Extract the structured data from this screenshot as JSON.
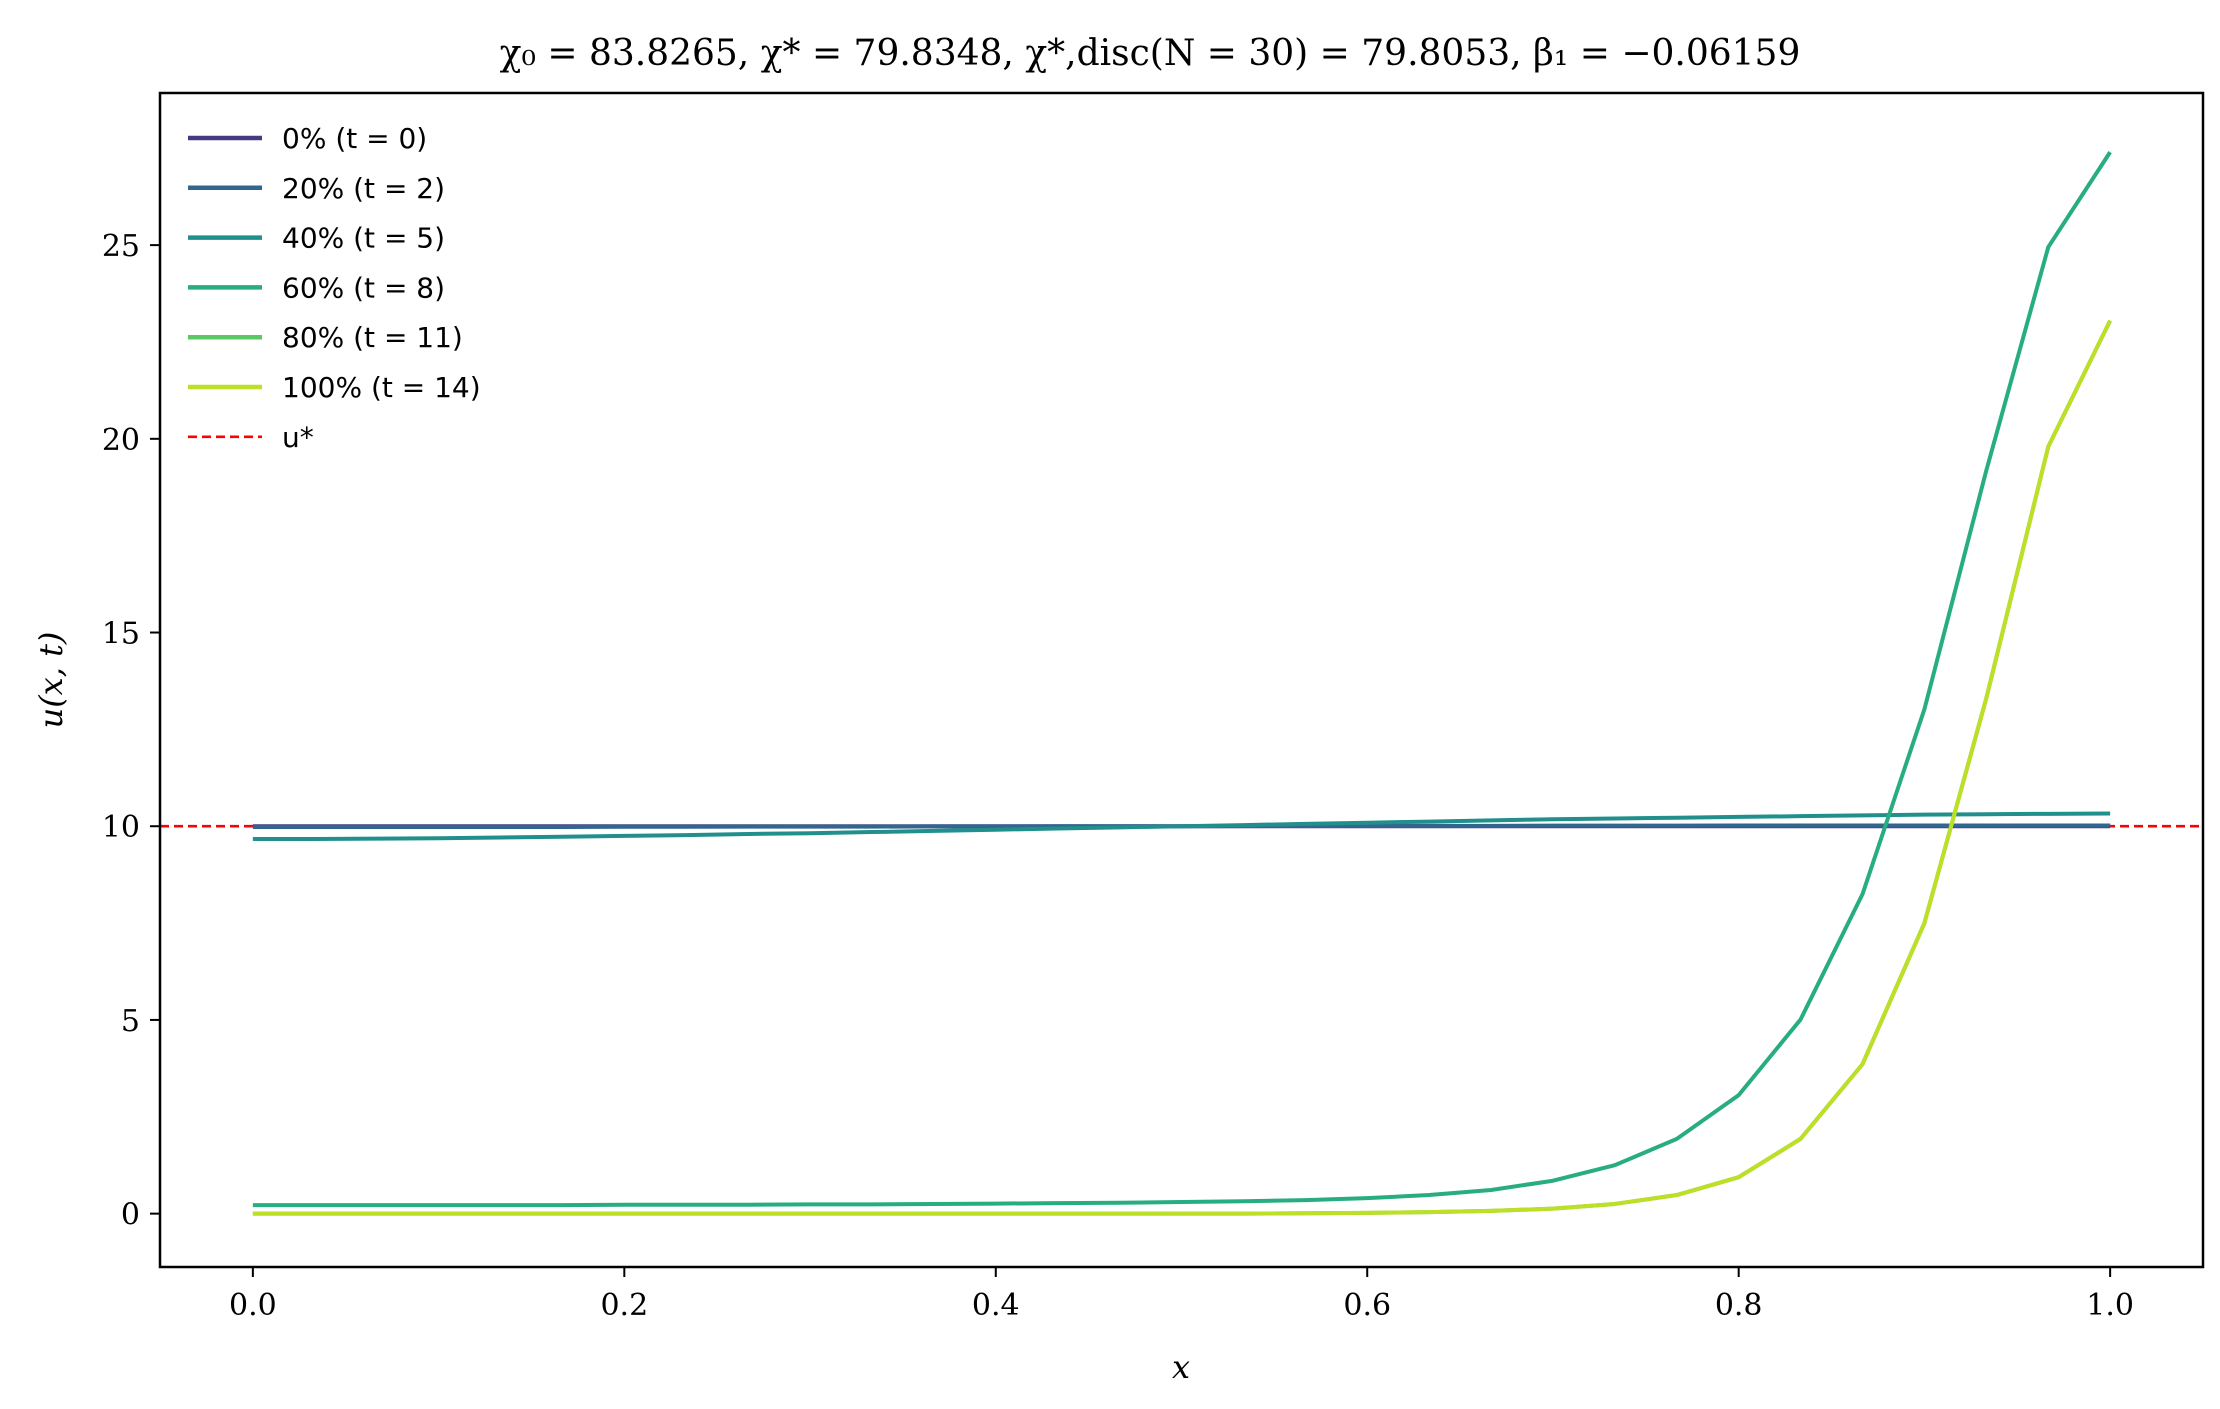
{
  "chart_data": {
    "type": "line",
    "title": "χ₀ = 83.8265,  χ* = 79.8348,  χ*,disc(N = 30) = 79.8053,  β₁ = −0.06159",
    "xlabel": "x",
    "ylabel": "u(x, t)",
    "xlim": [
      -0.05,
      1.05
    ],
    "ylim": [
      -1.3774,
      28.9264
    ],
    "x_ticks": [
      0.0,
      0.2,
      0.4,
      0.6,
      0.8,
      1.0
    ],
    "x_tick_labels": [
      "0.0",
      "0.2",
      "0.4",
      "0.6",
      "0.8",
      "1.0"
    ],
    "y_ticks": [
      0,
      5,
      10,
      15,
      20,
      25
    ],
    "y_tick_labels": [
      "0",
      "5",
      "10",
      "15",
      "20",
      "25"
    ],
    "grid": false,
    "legend_position": "upper-left",
    "x": [
      0.0,
      0.0333,
      0.0667,
      0.1,
      0.1333,
      0.1667,
      0.2,
      0.2333,
      0.2667,
      0.3,
      0.3333,
      0.3667,
      0.4,
      0.4333,
      0.4667,
      0.5,
      0.5333,
      0.5667,
      0.6,
      0.6333,
      0.6667,
      0.7,
      0.7333,
      0.7667,
      0.8,
      0.8333,
      0.8667,
      0.9,
      0.9333,
      0.9667,
      1.0
    ],
    "series": [
      {
        "name": "0% (t = 0)",
        "color": "#443a83",
        "style": "solid",
        "values": [
          10.0,
          10.0,
          10.0,
          10.0,
          10.0,
          10.0,
          10.0,
          10.0,
          10.0,
          10.0,
          10.0,
          10.0,
          10.0,
          10.0,
          10.0,
          10.0,
          10.0,
          10.0,
          10.0,
          10.0,
          10.0,
          10.0,
          10.0,
          10.0,
          10.0,
          10.0,
          10.0,
          10.0,
          10.0,
          10.0,
          10.0
        ]
      },
      {
        "name": "20% (t = 2)",
        "color": "#31668e",
        "style": "solid",
        "values": [
          9.98,
          9.98,
          9.98,
          9.98,
          9.98,
          9.98,
          9.985,
          9.985,
          9.99,
          9.99,
          9.99,
          9.995,
          9.995,
          10.0,
          10.0,
          10.0,
          10.005,
          10.005,
          10.01,
          10.01,
          10.01,
          10.015,
          10.015,
          10.015,
          10.02,
          10.02,
          10.02,
          10.02,
          10.02,
          10.02,
          10.02
        ]
      },
      {
        "name": "40% (t = 5)",
        "color": "#21908d",
        "style": "solid",
        "values": [
          9.67,
          9.67,
          9.68,
          9.69,
          9.71,
          9.73,
          9.75,
          9.77,
          9.8,
          9.82,
          9.85,
          9.88,
          9.91,
          9.94,
          9.97,
          10.0,
          10.03,
          10.06,
          10.09,
          10.12,
          10.15,
          10.18,
          10.2,
          10.22,
          10.24,
          10.26,
          10.28,
          10.3,
          10.31,
          10.32,
          10.33
        ]
      },
      {
        "name": "60% (t = 8)",
        "color": "#27ad81",
        "style": "solid",
        "values": [
          0.22,
          0.22,
          0.22,
          0.22,
          0.22,
          0.22,
          0.23,
          0.23,
          0.23,
          0.24,
          0.24,
          0.25,
          0.26,
          0.27,
          0.28,
          0.3,
          0.32,
          0.35,
          0.4,
          0.48,
          0.61,
          0.85,
          1.25,
          1.93,
          3.06,
          5.01,
          8.25,
          13.02,
          19.18,
          24.95,
          27.4
        ]
      },
      {
        "name": "80% (t = 11)",
        "color": "#5cc863",
        "style": "solid",
        "values": [
          0.0,
          0.0,
          0.0,
          0.0,
          0.0,
          0.0,
          0.0,
          0.0,
          0.0,
          0.0,
          0.0,
          0.0,
          0.0,
          0.0,
          0.0,
          0.0,
          0.0,
          0.01,
          0.02,
          0.04,
          0.07,
          0.13,
          0.25,
          0.48,
          0.94,
          1.93,
          3.86,
          7.5,
          13.3,
          19.8,
          23.05
        ]
      },
      {
        "name": "100% (t = 14)",
        "color": "#bddf26",
        "style": "solid",
        "values": [
          0.0,
          0.0,
          0.0,
          0.0,
          0.0,
          0.0,
          0.0,
          0.0,
          0.0,
          0.0,
          0.0,
          0.0,
          0.0,
          0.0,
          0.0,
          0.0,
          0.0,
          0.01,
          0.02,
          0.04,
          0.07,
          0.13,
          0.25,
          0.48,
          0.94,
          1.93,
          3.86,
          7.5,
          13.3,
          19.8,
          23.05
        ]
      }
    ],
    "reference_lines": [
      {
        "name": "u*",
        "orientation": "horizontal",
        "value": 10.0,
        "color": "#ff0000",
        "style": "dashed"
      }
    ]
  }
}
